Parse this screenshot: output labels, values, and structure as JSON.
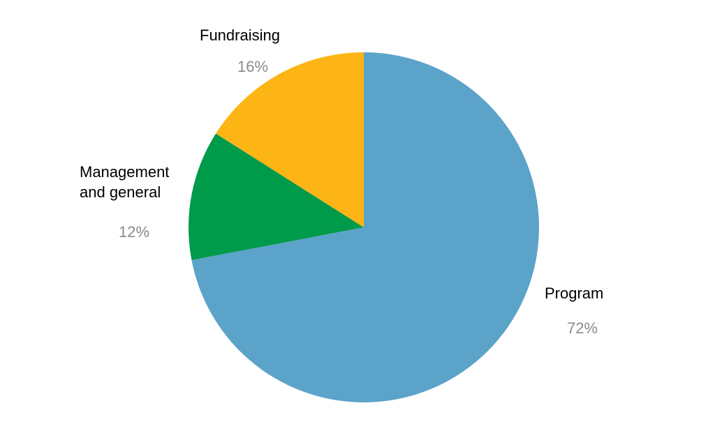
{
  "chart_data": {
    "type": "pie",
    "title": "",
    "start": "12 o'clock",
    "direction": "clockwise",
    "legend": "none",
    "slices": [
      {
        "label": [
          "Program"
        ],
        "value": 72,
        "value_label": "72%",
        "color": "#5BA3C9"
      },
      {
        "label": [
          "Management",
          "and general"
        ],
        "value": 12,
        "value_label": "12%",
        "color": "#009A4B"
      },
      {
        "label": [
          "Fundraising"
        ],
        "value": 16,
        "value_label": "16%",
        "color": "#FDB515"
      }
    ],
    "label_color": "#000000",
    "value_label_color": "#8A8A8A"
  }
}
